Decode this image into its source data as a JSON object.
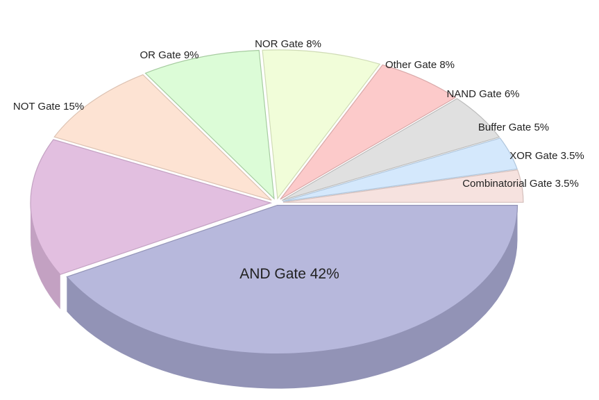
{
  "chart_data": {
    "type": "pie",
    "title": "",
    "slices": [
      {
        "name": "AND Gate",
        "value": 42,
        "label": "AND Gate 42%",
        "color": "#b7b8dc",
        "side_color": "#9293b6"
      },
      {
        "name": "NOT Gate",
        "value": 15,
        "label": "NOT Gate 15%",
        "color": "#e2bfe0",
        "side_color": "#c3a1c2"
      },
      {
        "name": "OR Gate",
        "value": 9,
        "label": "OR Gate 9%",
        "color": "#fde3d3",
        "side_color": "#dcc2b2"
      },
      {
        "name": "NOR Gate",
        "value": 8,
        "label": "NOR Gate 8%",
        "color": "#dcfcd7",
        "side_color": "#a6cba0"
      },
      {
        "name": "Other Gate",
        "value": 8,
        "label": "Other Gate 8%",
        "color": "#f1fdd9",
        "side_color": "#cfdbb5"
      },
      {
        "name": "NAND Gate",
        "value": 6,
        "label": "NAND Gate 6%",
        "color": "#fccaca",
        "side_color": "#d8a8a8"
      },
      {
        "name": "Buffer Gate",
        "value": 5,
        "label": "Buffer Gate 5%",
        "color": "#e0e0e0",
        "side_color": "#bcbcbc"
      },
      {
        "name": "XOR Gate",
        "value": 3.5,
        "label": "XOR Gate 3.5%",
        "color": "#d4e8fc",
        "side_color": "#b0c6dc"
      },
      {
        "name": "Combinatorial Gate",
        "value": 3.5,
        "label": "Combinatorial Gate 3.5%",
        "color": "#f6e2df",
        "side_color": "#d4bfbb"
      }
    ],
    "style": "3d-exploded",
    "legend": "none"
  }
}
